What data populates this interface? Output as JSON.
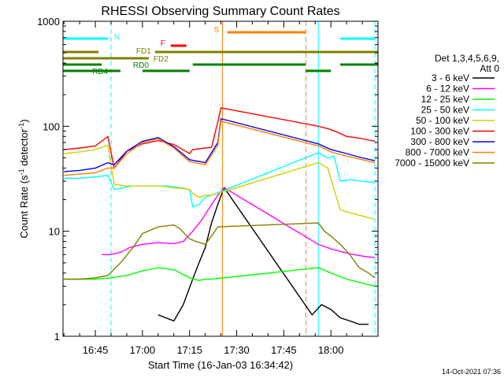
{
  "chart_data": {
    "type": "line",
    "title": "RHESSI Observing Summary Count Rates",
    "xlabel": "Start Time (16-Jan-03 16:34:42)",
    "ylabel": "Count Rate (s",
    "ylabel_sup": "-1",
    "ylabel_rest": " detector",
    "ylabel_tail": ")",
    "x_scale": "time",
    "y_scale": "log",
    "xlim": [
      "16:34:42",
      "18:15:00"
    ],
    "ylim": [
      1,
      1000
    ],
    "x_tick_labels": [
      "16:45",
      "17:00",
      "17:15",
      "17:30",
      "17:45",
      "18:00"
    ],
    "y_tick_labels": [
      "1",
      "10",
      "100",
      "1000"
    ],
    "legend_position": "right",
    "legend_header": [
      "Det 1,3,4,5,6,9,",
      "Att 0"
    ],
    "timestamp": "14-Oct-2021 07:36",
    "series": [
      {
        "name": "3 - 6 keV",
        "color": "#000000",
        "x": [
          "17:05",
          "17:10",
          "17:13",
          "17:16",
          "17:18",
          "17:20",
          "17:22",
          "17:24",
          "17:26",
          "17:54",
          "17:57",
          "18:00",
          "18:03",
          "18:06",
          "18:09",
          "18:12"
        ],
        "y": [
          1.6,
          1.4,
          2.0,
          3.5,
          5.0,
          7.0,
          12,
          18,
          26,
          1.6,
          2.0,
          1.8,
          1.5,
          1.4,
          1.3,
          1.3
        ]
      },
      {
        "name": "6 - 12 keV",
        "color": "#ff00ff",
        "x": [
          "16:47",
          "16:50",
          "16:53",
          "16:56",
          "17:00",
          "17:05",
          "17:10",
          "17:13",
          "17:16",
          "17:19",
          "17:22",
          "17:24",
          "17:26",
          "17:56",
          "18:00",
          "18:05",
          "18:10",
          "18:14"
        ],
        "y": [
          6,
          6,
          6.3,
          7,
          7.5,
          7.8,
          7.6,
          8,
          10,
          13,
          18,
          22,
          26,
          7.5,
          6.8,
          6.2,
          5.8,
          5.6
        ]
      },
      {
        "name": "12 - 25 keV",
        "color": "#00ff00",
        "x": [
          "16:35",
          "16:40",
          "16:45",
          "16:50",
          "16:55",
          "17:00",
          "17:05",
          "17:10",
          "17:15",
          "17:18",
          "17:20",
          "17:22",
          "17:56",
          "18:00",
          "18:05",
          "18:10",
          "18:14"
        ],
        "y": [
          3.5,
          3.5,
          3.5,
          3.6,
          3.8,
          4.2,
          4.5,
          4.3,
          3.6,
          3.4,
          3.5,
          3.5,
          4.5,
          4.0,
          3.5,
          3.2,
          3.0
        ]
      },
      {
        "name": "25 - 50 keV",
        "color": "#00ffff",
        "x": [
          "16:35",
          "16:40",
          "16:45",
          "16:49",
          "16:51",
          "16:54",
          "16:57",
          "17:00",
          "17:04",
          "17:08",
          "17:12",
          "17:15",
          "17:16",
          "17:18",
          "17:20",
          "17:22",
          "17:56",
          "17:59",
          "18:01",
          "18:03",
          "18:06",
          "18:10",
          "18:14"
        ],
        "y": [
          32,
          32,
          33,
          34,
          25,
          26,
          27,
          27,
          27,
          27,
          26,
          25,
          17,
          18,
          21,
          22,
          56,
          50,
          52,
          30,
          31,
          30,
          29
        ]
      },
      {
        "name": "50 - 100 keV",
        "color": "#d0d000",
        "x": [
          "16:35",
          "16:40",
          "16:45",
          "16:49",
          "16:51",
          "16:55",
          "17:00",
          "17:05",
          "17:10",
          "17:15",
          "17:16",
          "17:18",
          "17:20",
          "17:22",
          "17:56",
          "17:59",
          "18:01",
          "18:03",
          "18:06",
          "18:10",
          "18:14"
        ],
        "y": [
          55,
          57,
          60,
          66,
          28,
          27,
          27,
          27,
          26,
          25,
          23,
          21,
          22,
          22,
          45,
          40,
          25,
          16,
          15,
          14,
          13
        ]
      },
      {
        "name": "100 - 300 keV",
        "color": "#ff0000",
        "x": [
          "16:35",
          "16:40",
          "16:45",
          "16:49",
          "16:51",
          "16:55",
          "17:00",
          "17:05",
          "17:10",
          "17:15",
          "17:16",
          "17:18",
          "17:20",
          "17:22",
          "17:24",
          "17:25",
          "17:56",
          "17:59",
          "18:02",
          "18:05",
          "18:08",
          "18:11",
          "18:14"
        ],
        "y": [
          60,
          62,
          65,
          80,
          40,
          58,
          68,
          73,
          67,
          55,
          60,
          61,
          62,
          63,
          110,
          150,
          100,
          95,
          88,
          80,
          78,
          75,
          72
        ]
      },
      {
        "name": "300 - 800 keV",
        "color": "#0000ff",
        "x": [
          "16:35",
          "16:40",
          "16:45",
          "16:49",
          "16:51",
          "16:55",
          "17:00",
          "17:05",
          "17:10",
          "17:15",
          "17:20",
          "17:24",
          "17:25",
          "17:56",
          "18:00",
          "18:05",
          "18:10",
          "18:14"
        ],
        "y": [
          37,
          38,
          40,
          45,
          43,
          58,
          72,
          78,
          64,
          48,
          45,
          70,
          118,
          68,
          60,
          55,
          50,
          47
        ]
      },
      {
        "name": "800 - 7000 keV",
        "color": "#ff8000",
        "x": [
          "16:35",
          "16:40",
          "16:45",
          "16:49",
          "16:51",
          "16:55",
          "17:00",
          "17:05",
          "17:10",
          "17:15",
          "17:20",
          "17:24",
          "17:25",
          "17:56",
          "18:00",
          "18:05",
          "18:10",
          "18:14"
        ],
        "y": [
          34,
          35,
          36,
          40,
          40,
          55,
          70,
          76,
          62,
          46,
          43,
          66,
          112,
          65,
          57,
          52,
          48,
          45
        ]
      },
      {
        "name": "7000 - 15000 keV",
        "color": "#808000",
        "x": [
          "16:35",
          "16:40",
          "16:45",
          "16:49",
          "16:53",
          "16:57",
          "17:00",
          "17:05",
          "17:10",
          "17:12",
          "17:15",
          "17:17",
          "17:20",
          "17:22",
          "17:24",
          "17:56",
          "17:58",
          "18:00",
          "18:03",
          "18:06",
          "18:09",
          "18:12",
          "18:14"
        ],
        "y": [
          3.5,
          3.5,
          3.6,
          3.8,
          5,
          7,
          9.5,
          11,
          11.5,
          10.5,
          8.5,
          8,
          7.5,
          9,
          11,
          12,
          10,
          9,
          7.5,
          6,
          4.5,
          4,
          3.6
        ]
      }
    ],
    "annotations": [
      {
        "label": "N",
        "color": "#00ffff",
        "row": 1,
        "segments": [
          [
            "16:34:42",
            "16:49"
          ],
          [
            "18:03",
            "18:14"
          ]
        ]
      },
      {
        "label": "F",
        "color": "#ff0000",
        "row": 2,
        "segments": [
          [
            "17:09",
            "17:14"
          ]
        ]
      },
      {
        "label": "S",
        "color": "#ff8000",
        "row": 0,
        "segments": [
          [
            "17:27",
            "17:52"
          ]
        ]
      },
      {
        "label": "FD1",
        "color": "#808000",
        "row": 3,
        "segments": [
          [
            "16:34:42",
            "16:46"
          ],
          [
            "17:04",
            "18:15"
          ]
        ]
      },
      {
        "label": "FD2",
        "color": "#808000",
        "row": 4,
        "segments": [
          [
            "16:34:42",
            "17:02"
          ]
        ]
      },
      {
        "label": "RD0",
        "color": "#008000",
        "row": 5,
        "segments": [
          [
            "16:34:42",
            "16:47"
          ],
          [
            "17:16",
            "17:52"
          ],
          [
            "18:03",
            "18:15"
          ]
        ]
      },
      {
        "label": "RD4",
        "color": "#008000",
        "row": 6,
        "segments": [
          [
            "16:34:42",
            "16:53"
          ],
          [
            "17:00",
            "17:15"
          ],
          [
            "17:52",
            "18:00"
          ]
        ]
      }
    ],
    "vertical_markers": [
      {
        "time": "16:34:42",
        "color": "#00ffff",
        "style": "solid"
      },
      {
        "time": "16:50",
        "color": "#00ffff",
        "style": "dashed"
      },
      {
        "time": "17:25:30",
        "color": "#ff8000",
        "style": "solid"
      },
      {
        "time": "17:52",
        "color": "#ff8000",
        "style": "dashed"
      },
      {
        "time": "17:56",
        "color": "#00ffff",
        "style": "solid"
      },
      {
        "time": "18:14",
        "color": "#00ffff",
        "style": "dashed"
      }
    ]
  }
}
